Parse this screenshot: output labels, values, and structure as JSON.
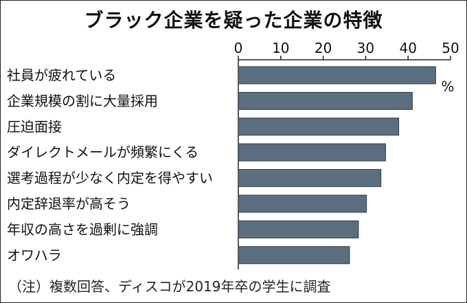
{
  "title": "ブラック企業を疑った企業の特徴",
  "note": "（注）複数回答、ディスコが2019年卒の学生に調査",
  "colors": {
    "bar": "#5b6f80",
    "bar_edge": "#2c3a46",
    "axis": "#222222",
    "text": "#111111"
  },
  "chart_data": {
    "type": "bar",
    "orientation": "horizontal",
    "unit": "%",
    "categories": [
      "社員が疲れている",
      "企業規模の割に大量採用",
      "圧迫面接",
      "ダイレクトメールが頻繁にくる",
      "選考過程が少なく内定を得やすい",
      "内定辞退率が高そう",
      "年収の高さを過剰に強調",
      "オワハラ"
    ],
    "values": [
      46.5,
      41,
      37.8,
      34.7,
      33.6,
      30.2,
      28.3,
      26.2
    ],
    "xlim": [
      0,
      50
    ],
    "ticks": [
      0,
      10,
      20,
      30,
      40,
      50
    ],
    "tick_labels": [
      "0",
      "10",
      "20",
      "30",
      "40",
      "50"
    ],
    "axis_position": "top",
    "grid": false,
    "legend": "none"
  }
}
